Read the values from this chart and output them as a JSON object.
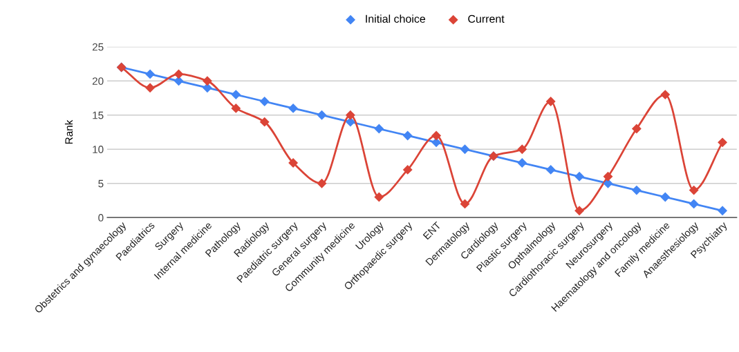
{
  "chart_data": {
    "type": "line",
    "ylabel": "Rank",
    "categories": [
      "Obstetrics and gynaecology",
      "Paediatrics",
      "Surgery",
      "Internal medicine",
      "Pathology",
      "Radiology",
      "Paediatric surgery",
      "General surgery",
      "Community medicine",
      "Urology",
      "Orthopaedic surgery",
      "ENT",
      "Dermatology",
      "Cardiology",
      "Plastic surgery",
      "Opthalmology",
      "Cardiothoracic surgery",
      "Neurosurgery",
      "Haematology and oncology",
      "Family medicine",
      "Anaesthesiology",
      "Psychiatry"
    ],
    "series": [
      {
        "name": "Initial choice",
        "color": "#4285f4",
        "values": [
          22,
          21,
          20,
          19,
          18,
          17,
          16,
          15,
          14,
          13,
          12,
          11,
          10,
          9,
          8,
          7,
          6,
          5,
          4,
          3,
          2,
          1
        ]
      },
      {
        "name": "Current",
        "color": "#db4437",
        "values": [
          22,
          19,
          21,
          20,
          16,
          14,
          8,
          5,
          15,
          3,
          7,
          12,
          2,
          9,
          10,
          17,
          1,
          6,
          13,
          18,
          4,
          11
        ]
      }
    ],
    "ylim": [
      0,
      25
    ],
    "yticks": [
      0,
      5,
      10,
      15,
      20,
      25
    ],
    "grid": "y",
    "legend": "top",
    "marker": "diamond",
    "line_style": "solid"
  }
}
